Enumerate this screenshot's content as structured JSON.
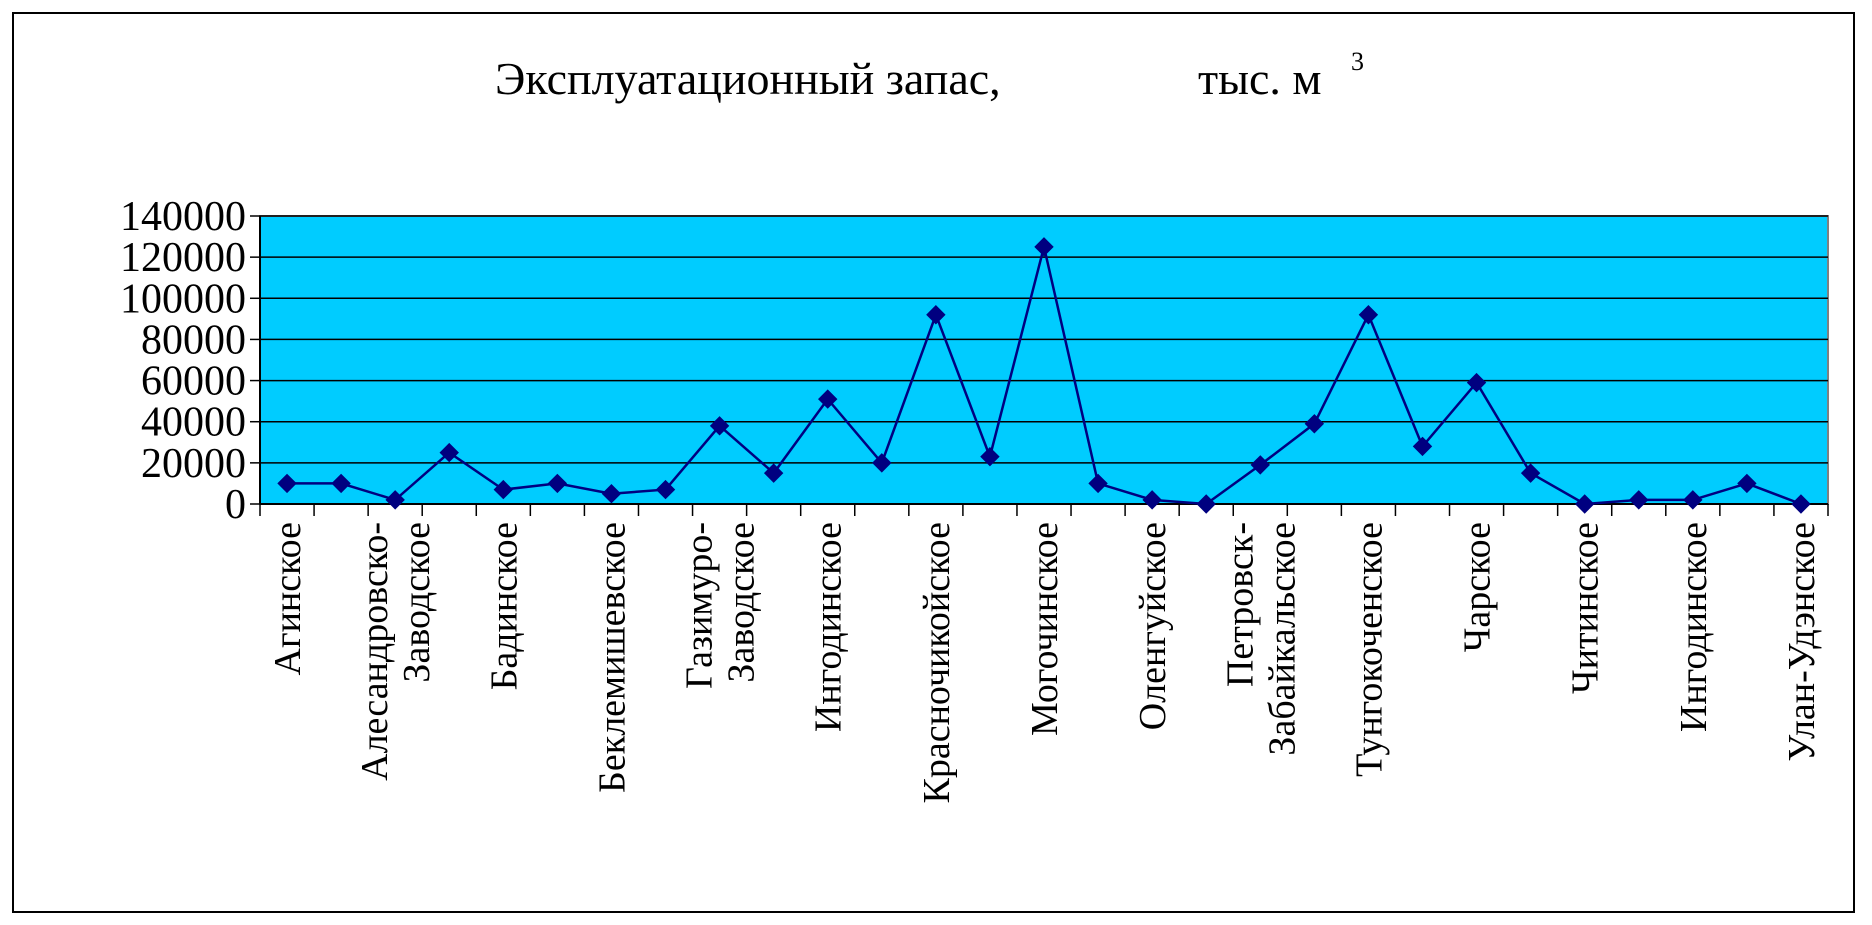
{
  "colors": {
    "plot_background": "#00CCFF",
    "line": "#000080",
    "marker": "#000080",
    "gridline": "#000000",
    "frame": "#000000"
  },
  "chart_data": {
    "type": "line",
    "title": "Эксплуатационный запас,",
    "title_unit": "тыс. м",
    "title_unit_superscript": "3",
    "xlabel": "",
    "ylabel": "",
    "ylim": [
      0,
      140000
    ],
    "yticks": [
      "0",
      "20000",
      "40000",
      "60000",
      "80000",
      "100000",
      "120000",
      "140000"
    ],
    "grid": true,
    "legend": "none",
    "marker": "diamond",
    "categories": [
      "Агинское",
      "",
      "Алесандровско-Заводское",
      "",
      "Бадинское",
      "",
      "Беклемишевское",
      "",
      "Газимуро-Заводское",
      "",
      "Ингодинское",
      "",
      "Красночикойское",
      "",
      "Могочинское",
      "",
      "Оленгуйское",
      "",
      "Петровск-Забайкальское",
      "",
      "Тунгокоченское",
      "",
      "Чарское",
      "",
      "Читинское",
      "",
      "Ингодинское",
      "",
      "Улан-Удэнское"
    ],
    "category_labels_shown": [
      [
        "Агинское"
      ],
      [
        "Алесандровско-",
        "Заводское"
      ],
      [
        "Бадинское"
      ],
      [
        "Беклемишевское"
      ],
      [
        "Газимуро-",
        "Заводское"
      ],
      [
        "Ингодинское"
      ],
      [
        "Красночикойское"
      ],
      [
        "Могочинское"
      ],
      [
        "Оленгуйское"
      ],
      [
        "Петровск-",
        "Забайкальское"
      ],
      [
        "Тунгокоченское"
      ],
      [
        "Чарское"
      ],
      [
        "Читинское"
      ],
      [
        "Ингодинское"
      ],
      [
        "Улан-Удэнское"
      ]
    ],
    "values": [
      10000,
      10000,
      2000,
      25000,
      7000,
      10000,
      5000,
      7000,
      38000,
      15000,
      51000,
      20000,
      92000,
      23000,
      125000,
      10000,
      2000,
      0,
      19000,
      39000,
      92000,
      28000,
      59000,
      15000,
      0,
      2000,
      2000,
      10000,
      0
    ]
  }
}
